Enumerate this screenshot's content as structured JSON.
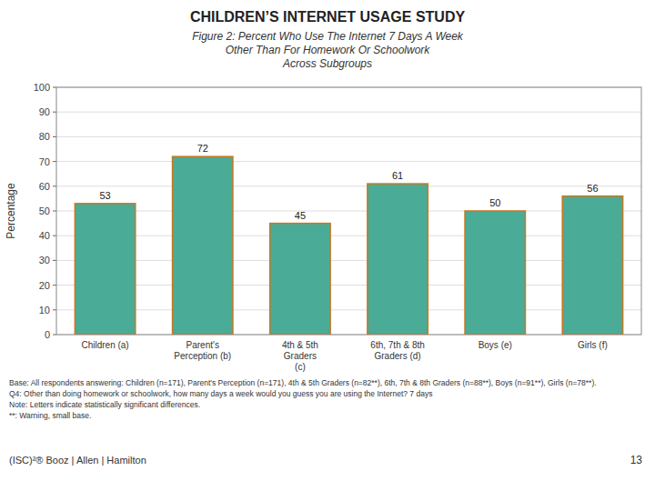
{
  "chart_data": {
    "type": "bar",
    "title": "CHILDREN’S INTERNET USAGE STUDY",
    "subtitle": [
      "Figure 2: Percent Who Use The Internet 7 Days A Week",
      "Other Than For Homework Or Schoolwork",
      "Across Subgroups"
    ],
    "categories": [
      "Children (a)",
      "Parent's\nPerception (b)",
      "4th & 5th\nGraders\n(c)",
      "6th, 7th & 8th\nGraders (d)",
      "Boys (e)",
      "Girls (f)"
    ],
    "values": [
      53,
      72,
      45,
      61,
      50,
      56
    ],
    "color": "#4aab96",
    "ylim": [
      0,
      100
    ],
    "yticks": [
      0,
      10,
      20,
      30,
      40,
      50,
      60,
      70,
      80,
      90,
      100
    ],
    "ylabel": "Percentage",
    "grid": true,
    "data_labels": true,
    "annotations": [
      "Base:   All respondents answering: Children (n=171), Parent's Perception (n=171), 4th & 5th Graders (n=82**), 6th, 7th & 8th Graders (n=88**), Boys (n=91**), Girls (n=78**).",
      "Q4:      Other than doing homework or schoolwork, how many days a week would you guess you are using the Internet? 7 days",
      "Note:   Letters indicate statistically significant differences.",
      "**:        Warning, small base.",
      "13",
      "(ISC)²®  Booz  |  Allen  |  Hamilton"
    ]
  }
}
